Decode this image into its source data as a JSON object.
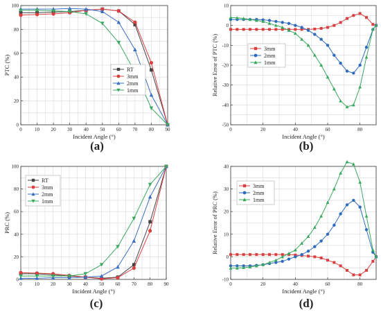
{
  "chart_data": [
    {
      "type": "line",
      "panel_label": "(a)",
      "xlabel": "Incident Angle (°)",
      "ylabel": "PTC (%)",
      "xlim": [
        0,
        90
      ],
      "ylim": [
        0,
        100
      ],
      "xticks": [
        0,
        10,
        20,
        30,
        40,
        50,
        60,
        70,
        80,
        90
      ],
      "yticks": [
        0,
        20,
        40,
        60,
        80,
        100
      ],
      "grid": true,
      "legend": "middle-right",
      "series": [
        {
          "name": "RT",
          "color": "#444444",
          "marker": "square",
          "x": [
            0,
            10,
            20,
            30,
            40,
            50,
            60,
            70,
            80,
            90
          ],
          "y": [
            94,
            94,
            94.5,
            95,
            96,
            97,
            95.5,
            84,
            46,
            0
          ]
        },
        {
          "name": "3mm",
          "color": "#d94040",
          "marker": "circle",
          "x": [
            0,
            10,
            20,
            30,
            40,
            50,
            60,
            70,
            80,
            90
          ],
          "y": [
            92,
            92.5,
            93,
            94,
            96,
            97,
            95.5,
            86,
            52,
            0
          ]
        },
        {
          "name": "2mm",
          "color": "#3a6fc4",
          "marker": "triangle-up",
          "x": [
            0,
            10,
            20,
            30,
            40,
            50,
            60,
            70,
            80,
            90
          ],
          "y": [
            97,
            97,
            97,
            97.5,
            97,
            95,
            86,
            63,
            25,
            0
          ]
        },
        {
          "name": "1mm",
          "color": "#3aa860",
          "marker": "triangle-down",
          "x": [
            0,
            10,
            20,
            30,
            40,
            50,
            60,
            70,
            80,
            90
          ],
          "y": [
            96,
            96,
            95.5,
            95,
            93,
            85,
            69,
            44,
            14,
            0
          ]
        }
      ]
    },
    {
      "type": "line",
      "panel_label": "(b)",
      "xlabel": "Incident Angle (°)",
      "ylabel": "Relative Error of PTC (%)",
      "xlim": [
        0,
        90
      ],
      "ylim": [
        -50,
        10
      ],
      "xticks": [
        0,
        20,
        40,
        60,
        80
      ],
      "yticks": [
        -50,
        -40,
        -30,
        -20,
        -10,
        0,
        10
      ],
      "grid": true,
      "legend": "left",
      "series": [
        {
          "name": "3mm",
          "color": "#d94040",
          "marker": "square",
          "x": [
            0,
            4,
            8,
            12,
            16,
            20,
            24,
            28,
            32,
            36,
            40,
            44,
            48,
            52,
            56,
            60,
            64,
            68,
            72,
            76,
            80,
            84,
            88,
            90
          ],
          "y": [
            -2,
            -2,
            -2,
            -2,
            -2,
            -2,
            -2,
            -2,
            -2,
            -2,
            -2,
            -2,
            -2,
            -1.8,
            -1.5,
            -1,
            0,
            1.5,
            3.5,
            5,
            6,
            4,
            0.5,
            0
          ]
        },
        {
          "name": "2mm",
          "color": "#2f6cbd",
          "marker": "circle",
          "x": [
            0,
            4,
            8,
            12,
            16,
            20,
            24,
            28,
            32,
            36,
            40,
            44,
            48,
            52,
            56,
            60,
            64,
            68,
            72,
            76,
            80,
            84,
            88,
            90
          ],
          "y": [
            3,
            3,
            3,
            3,
            3,
            2.8,
            2.5,
            2,
            1.5,
            1,
            0,
            -1,
            -2.5,
            -4.5,
            -7,
            -10,
            -15,
            -19,
            -23,
            -24,
            -20,
            -11,
            -2,
            0
          ]
        },
        {
          "name": "1mm",
          "color": "#3aa860",
          "marker": "triangle-up",
          "x": [
            0,
            4,
            8,
            12,
            16,
            20,
            24,
            28,
            32,
            36,
            40,
            44,
            48,
            52,
            56,
            60,
            64,
            68,
            72,
            76,
            80,
            84,
            88,
            90
          ],
          "y": [
            4,
            3.8,
            3.5,
            3,
            2.5,
            2,
            1,
            0,
            -1,
            -2.5,
            -4,
            -7,
            -10,
            -15,
            -20,
            -26,
            -32,
            -38,
            -41,
            -40,
            -31,
            -16,
            -2,
            0
          ]
        }
      ]
    },
    {
      "type": "line",
      "panel_label": "(c)",
      "xlabel": "Incident Angle (°)",
      "ylabel": "PRC (%)",
      "xlim": [
        0,
        90
      ],
      "ylim": [
        0,
        100
      ],
      "xticks": [
        0,
        10,
        20,
        30,
        40,
        50,
        60,
        70,
        80,
        90
      ],
      "yticks": [
        0,
        20,
        40,
        60,
        80,
        100
      ],
      "grid": true,
      "legend": "top-left",
      "series": [
        {
          "name": "RT",
          "color": "#444444",
          "marker": "square",
          "x": [
            0,
            10,
            20,
            30,
            40,
            50,
            60,
            70,
            80,
            90
          ],
          "y": [
            5,
            5,
            4,
            3,
            2,
            1,
            2,
            13,
            51,
            100
          ]
        },
        {
          "name": "3mm",
          "color": "#d94040",
          "marker": "circle",
          "x": [
            0,
            10,
            20,
            30,
            40,
            50,
            60,
            70,
            80,
            90
          ],
          "y": [
            6,
            5.5,
            5,
            3.5,
            2,
            0.5,
            1.5,
            10,
            43,
            100
          ]
        },
        {
          "name": "2mm",
          "color": "#3a6fc4",
          "marker": "triangle-up",
          "x": [
            0,
            10,
            20,
            30,
            40,
            50,
            60,
            70,
            80,
            90
          ],
          "y": [
            1,
            1,
            1.5,
            1.5,
            2,
            3,
            11,
            34,
            73,
            100
          ]
        },
        {
          "name": "1mm",
          "color": "#3aa860",
          "marker": "triangle-down",
          "x": [
            0,
            10,
            20,
            30,
            40,
            50,
            60,
            70,
            80,
            90
          ],
          "y": [
            3,
            3,
            3,
            3,
            5,
            13,
            29,
            54,
            84,
            100
          ]
        }
      ]
    },
    {
      "type": "line",
      "panel_label": "(d)",
      "xlabel": "Incident Angle (°)",
      "ylabel": "Relative Error of PRC (%)",
      "xlim": [
        0,
        90
      ],
      "ylim": [
        -10,
        40
      ],
      "xticks": [
        0,
        20,
        40,
        60,
        80
      ],
      "yticks": [
        -10,
        0,
        10,
        20,
        30,
        40
      ],
      "grid": true,
      "legend": "top-left",
      "series": [
        {
          "name": "3mm",
          "color": "#d94040",
          "marker": "square",
          "x": [
            0,
            4,
            8,
            12,
            16,
            20,
            24,
            28,
            32,
            36,
            40,
            44,
            48,
            52,
            56,
            60,
            64,
            68,
            72,
            76,
            80,
            84,
            88,
            90
          ],
          "y": [
            1,
            1,
            1,
            1,
            1,
            1,
            1,
            1,
            1,
            1,
            0.8,
            0.6,
            0.3,
            0,
            -0.5,
            -1.5,
            -2.5,
            -4,
            -6,
            -8,
            -8,
            -6,
            -2,
            0
          ]
        },
        {
          "name": "2mm",
          "color": "#2f6cbd",
          "marker": "circle",
          "x": [
            0,
            4,
            8,
            12,
            16,
            20,
            24,
            28,
            32,
            36,
            40,
            44,
            48,
            52,
            56,
            60,
            64,
            68,
            72,
            76,
            80,
            84,
            88,
            90
          ],
          "y": [
            -4,
            -4,
            -4,
            -4,
            -3.8,
            -3.5,
            -3,
            -2.5,
            -2,
            -1,
            0,
            1,
            2.5,
            4.5,
            7,
            10,
            14,
            19,
            23,
            25,
            22,
            12,
            2,
            0
          ]
        },
        {
          "name": "1mm",
          "color": "#3aa860",
          "marker": "triangle-up",
          "x": [
            0,
            4,
            8,
            12,
            16,
            20,
            24,
            28,
            32,
            36,
            40,
            44,
            48,
            52,
            56,
            60,
            64,
            68,
            72,
            76,
            80,
            84,
            88,
            90
          ],
          "y": [
            -5,
            -5,
            -4.8,
            -4.5,
            -4,
            -3.5,
            -2.5,
            -1.5,
            0,
            1.5,
            3,
            6,
            9,
            13,
            18,
            24,
            30,
            37,
            42,
            41,
            33,
            18,
            3,
            0
          ]
        }
      ]
    }
  ]
}
